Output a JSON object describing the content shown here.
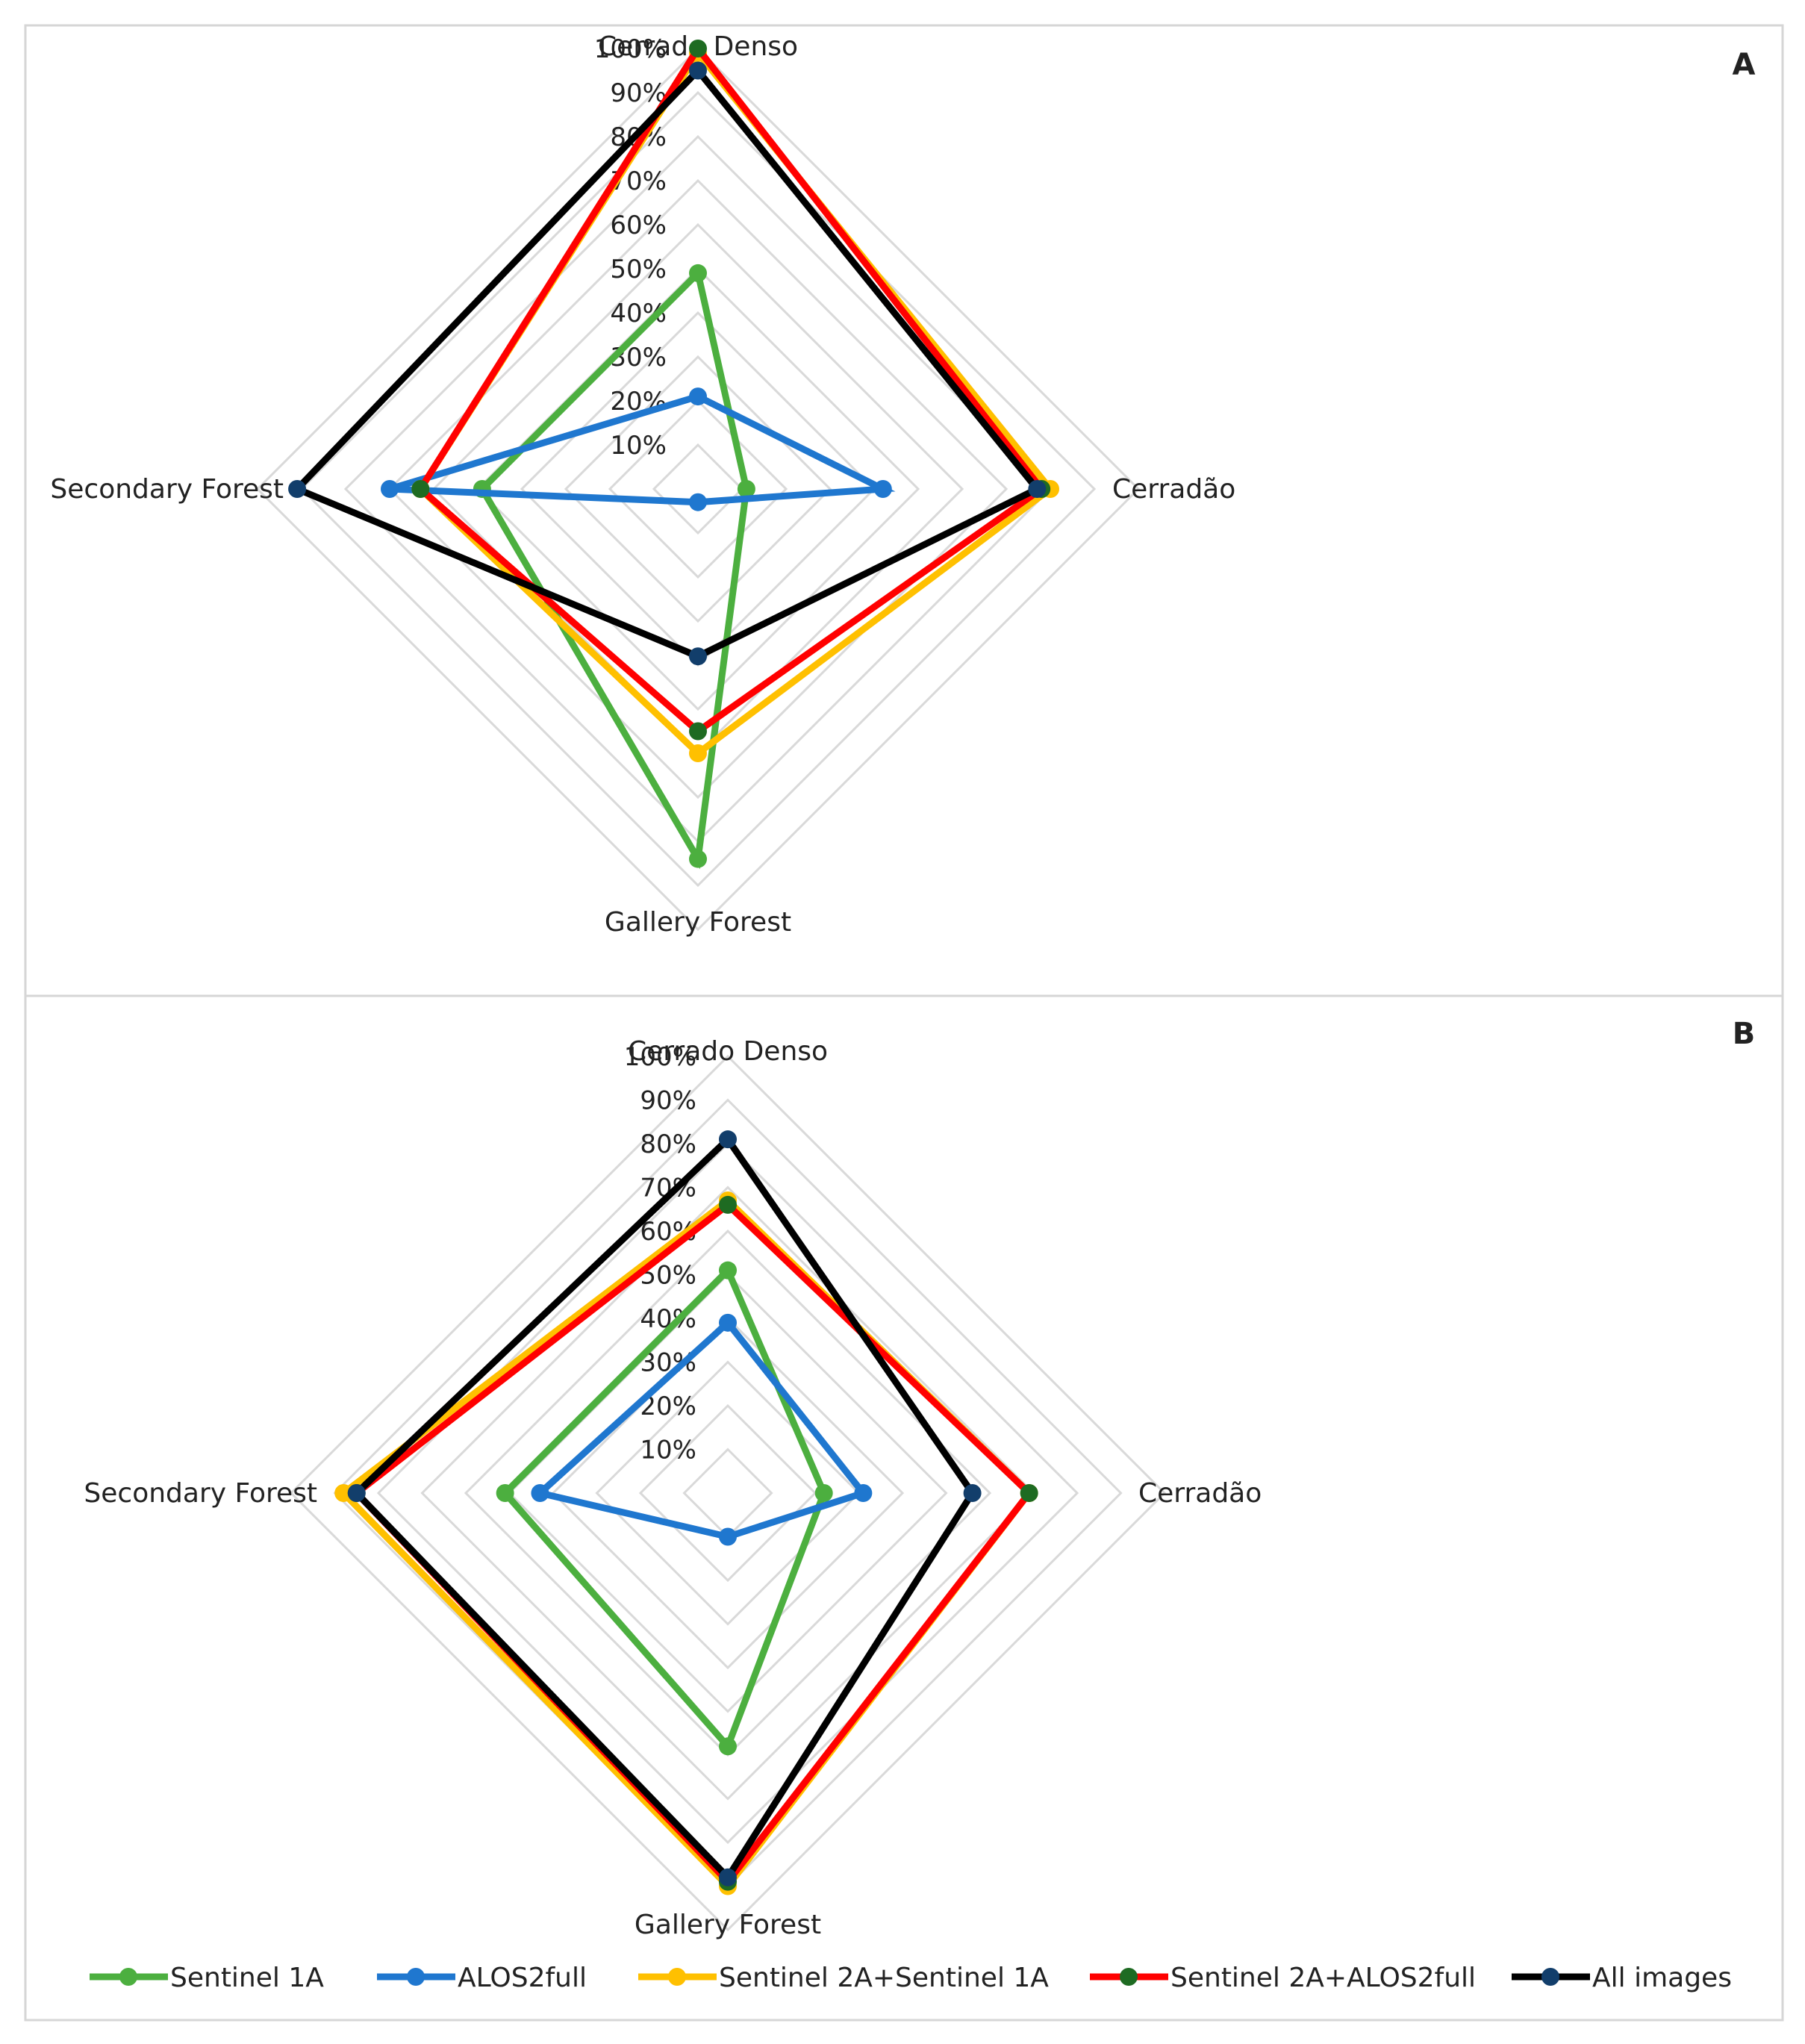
{
  "chart_data": [
    {
      "type": "radar",
      "panel_label": "A",
      "axes": [
        "Cerrado Denso",
        "Cerradão",
        "Gallery Forest",
        "Secondary Forest"
      ],
      "rlim": [
        0,
        100
      ],
      "ticks": [
        "10%",
        "20%",
        "30%",
        "40%",
        "50%",
        "60%",
        "70%",
        "80%",
        "90%",
        "100%"
      ],
      "grid": true,
      "series": [
        {
          "name": "Sentinel 1A",
          "values": [
            49,
            11,
            84,
            49
          ],
          "color": "#4CAF3F"
        },
        {
          "name": "ALOS2full",
          "values": [
            21,
            42,
            3,
            70
          ],
          "color": "#1F77CF"
        },
        {
          "name": "Sentinel 2A+Sentinel 1A",
          "values": [
            99,
            80,
            60,
            63
          ],
          "color": "#FFC000"
        },
        {
          "name": "Sentinel 2A+ALOS2full",
          "values": [
            100,
            78,
            55,
            63
          ],
          "color": "#FF0000"
        },
        {
          "name": "All images",
          "values": [
            95,
            77,
            38,
            91
          ],
          "color": "#000000"
        }
      ]
    },
    {
      "type": "radar",
      "panel_label": "B",
      "axes": [
        "Cerrado Denso",
        "Cerradão",
        "Gallery Forest",
        "Secondary Forest"
      ],
      "rlim": [
        0,
        100
      ],
      "ticks": [
        "10%",
        "20%",
        "30%",
        "40%",
        "50%",
        "60%",
        "70%",
        "80%",
        "90%",
        "100%"
      ],
      "grid": true,
      "series": [
        {
          "name": "Sentinel 1A",
          "values": [
            51,
            22,
            58,
            51
          ],
          "color": "#4CAF3F"
        },
        {
          "name": "ALOS2full",
          "values": [
            39,
            31,
            10,
            43
          ],
          "color": "#1F77CF"
        },
        {
          "name": "Sentinel 2A+Sentinel 1A",
          "values": [
            67,
            69,
            90,
            88
          ],
          "color": "#FFC000"
        },
        {
          "name": "Sentinel 2A+ALOS2full",
          "values": [
            66,
            69,
            89,
            85
          ],
          "color": "#FF0000"
        },
        {
          "name": "All images",
          "values": [
            81,
            56,
            88,
            85
          ],
          "color": "#000000"
        }
      ]
    }
  ],
  "legend": {
    "placement": "bottom",
    "entries": [
      {
        "name": "Sentinel 1A",
        "color": "#4CAF3F",
        "marker": "#4CAF3F"
      },
      {
        "name": "ALOS2full",
        "color": "#1F77CF",
        "marker": "#1F77CF"
      },
      {
        "name": "Sentinel 2A+Sentinel 1A",
        "color": "#FFC000",
        "marker": "#FFC000"
      },
      {
        "name": "Sentinel 2A+ALOS2full",
        "color": "#FF0000",
        "marker": "#1E6B22"
      },
      {
        "name": "All images",
        "color": "#000000",
        "marker": "#123E6B"
      }
    ]
  },
  "marker_colors": {
    "Sentinel 1A": "#4CAF3F",
    "ALOS2full": "#1F77CF",
    "Sentinel 2A+Sentinel 1A": "#FFC000",
    "Sentinel 2A+ALOS2full": "#1E6B22",
    "All images": "#123E6B"
  }
}
